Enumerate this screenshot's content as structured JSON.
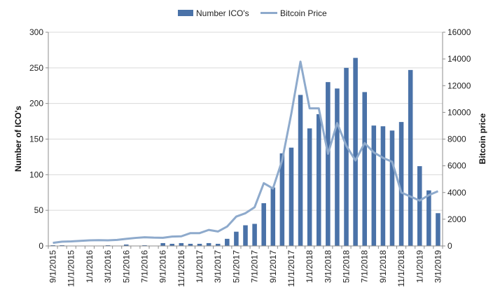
{
  "chart_data": {
    "type": "bar",
    "legend": {
      "placement": "top-center"
    },
    "grid": {
      "horizontal": true,
      "vertical": false
    },
    "colors": {
      "bar": "#4a72a8",
      "line": "#8eaacc",
      "grid": "#d9d9d9",
      "axis": "#8c8c8c"
    },
    "x_tick_labels": [
      "9/1/2015",
      "11/1/2015",
      "1/1/2016",
      "3/1/2016",
      "5/1/2016",
      "7/1/2016",
      "9/1/2016",
      "11/1/2016",
      "1/1/2017",
      "3/1/2017",
      "5/1/2017",
      "7/1/2017",
      "9/1/2017",
      "11/1/2017",
      "1/1/2018",
      "3/1/2018",
      "5/1/2018",
      "7/1/2018",
      "9/1/2018",
      "11/1/2018",
      "1/1/2019",
      "3/1/2019"
    ],
    "categories": [
      "9/1/2015",
      "10/1/2015",
      "11/1/2015",
      "12/1/2015",
      "1/1/2016",
      "2/1/2016",
      "3/1/2016",
      "4/1/2016",
      "5/1/2016",
      "6/1/2016",
      "7/1/2016",
      "8/1/2016",
      "9/1/2016",
      "10/1/2016",
      "11/1/2016",
      "12/1/2016",
      "1/1/2017",
      "2/1/2017",
      "3/1/2017",
      "4/1/2017",
      "5/1/2017",
      "6/1/2017",
      "7/1/2017",
      "8/1/2017",
      "9/1/2017",
      "10/1/2017",
      "11/1/2017",
      "12/1/2017",
      "1/1/2018",
      "2/1/2018",
      "3/1/2018",
      "4/1/2018",
      "5/1/2018",
      "6/1/2018",
      "7/1/2018",
      "8/1/2018",
      "9/1/2018",
      "10/1/2018",
      "11/1/2018",
      "12/1/2018",
      "1/1/2019",
      "2/1/2019",
      "3/1/2019"
    ],
    "series": [
      {
        "name": "Number ICO's",
        "type": "bar",
        "axis": "left",
        "values": [
          1,
          1,
          0,
          0,
          0,
          0,
          1,
          0,
          2,
          0,
          1,
          0,
          4,
          3,
          4,
          3,
          3,
          4,
          3,
          10,
          20,
          29,
          31,
          60,
          82,
          130,
          138,
          212,
          165,
          185,
          230,
          221,
          250,
          264,
          216,
          169,
          168,
          162,
          174,
          247,
          112,
          78,
          46
        ]
      },
      {
        "name": "Bitcoin Price",
        "type": "line",
        "axis": "right",
        "values": [
          230,
          320,
          340,
          380,
          420,
          430,
          420,
          450,
          530,
          600,
          650,
          620,
          610,
          700,
          720,
          960,
          960,
          1200,
          1080,
          1450,
          2200,
          2450,
          2900,
          4700,
          4300,
          6400,
          9900,
          13800,
          10300,
          10300,
          6900,
          9200,
          7500,
          6400,
          7700,
          7000,
          6600,
          6300,
          4000,
          3700,
          3400,
          3800,
          4100
        ]
      }
    ],
    "y_left": {
      "label": "Number of ICO's",
      "min": 0,
      "max": 300,
      "ticks": [
        0,
        50,
        100,
        150,
        200,
        250,
        300
      ]
    },
    "y_right": {
      "label": "Bitcoin price",
      "min": 0,
      "max": 16000,
      "ticks": [
        0,
        2000,
        4000,
        6000,
        8000,
        10000,
        12000,
        14000,
        16000
      ]
    }
  }
}
